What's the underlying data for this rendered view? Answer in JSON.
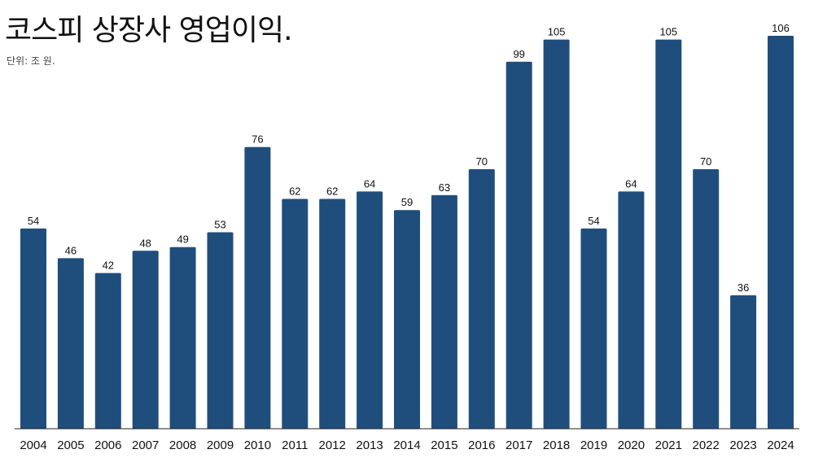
{
  "chart_data": {
    "type": "bar",
    "title": "코스피 상장사 영업이익.",
    "subtitle": "단위: 조 원.",
    "categories": [
      "2004",
      "2005",
      "2006",
      "2007",
      "2008",
      "2009",
      "2010",
      "2011",
      "2012",
      "2013",
      "2014",
      "2015",
      "2016",
      "2017",
      "2018",
      "2019",
      "2020",
      "2021",
      "2022",
      "2023",
      "2024"
    ],
    "values": [
      54,
      46,
      42,
      48,
      49,
      53,
      76,
      62,
      62,
      64,
      59,
      63,
      70,
      99,
      105,
      54,
      64,
      105,
      70,
      36,
      106
    ],
    "xlabel": "",
    "ylabel": "",
    "ylim": [
      0,
      106
    ],
    "grid": false,
    "bar_color": "#1f4e7d"
  }
}
